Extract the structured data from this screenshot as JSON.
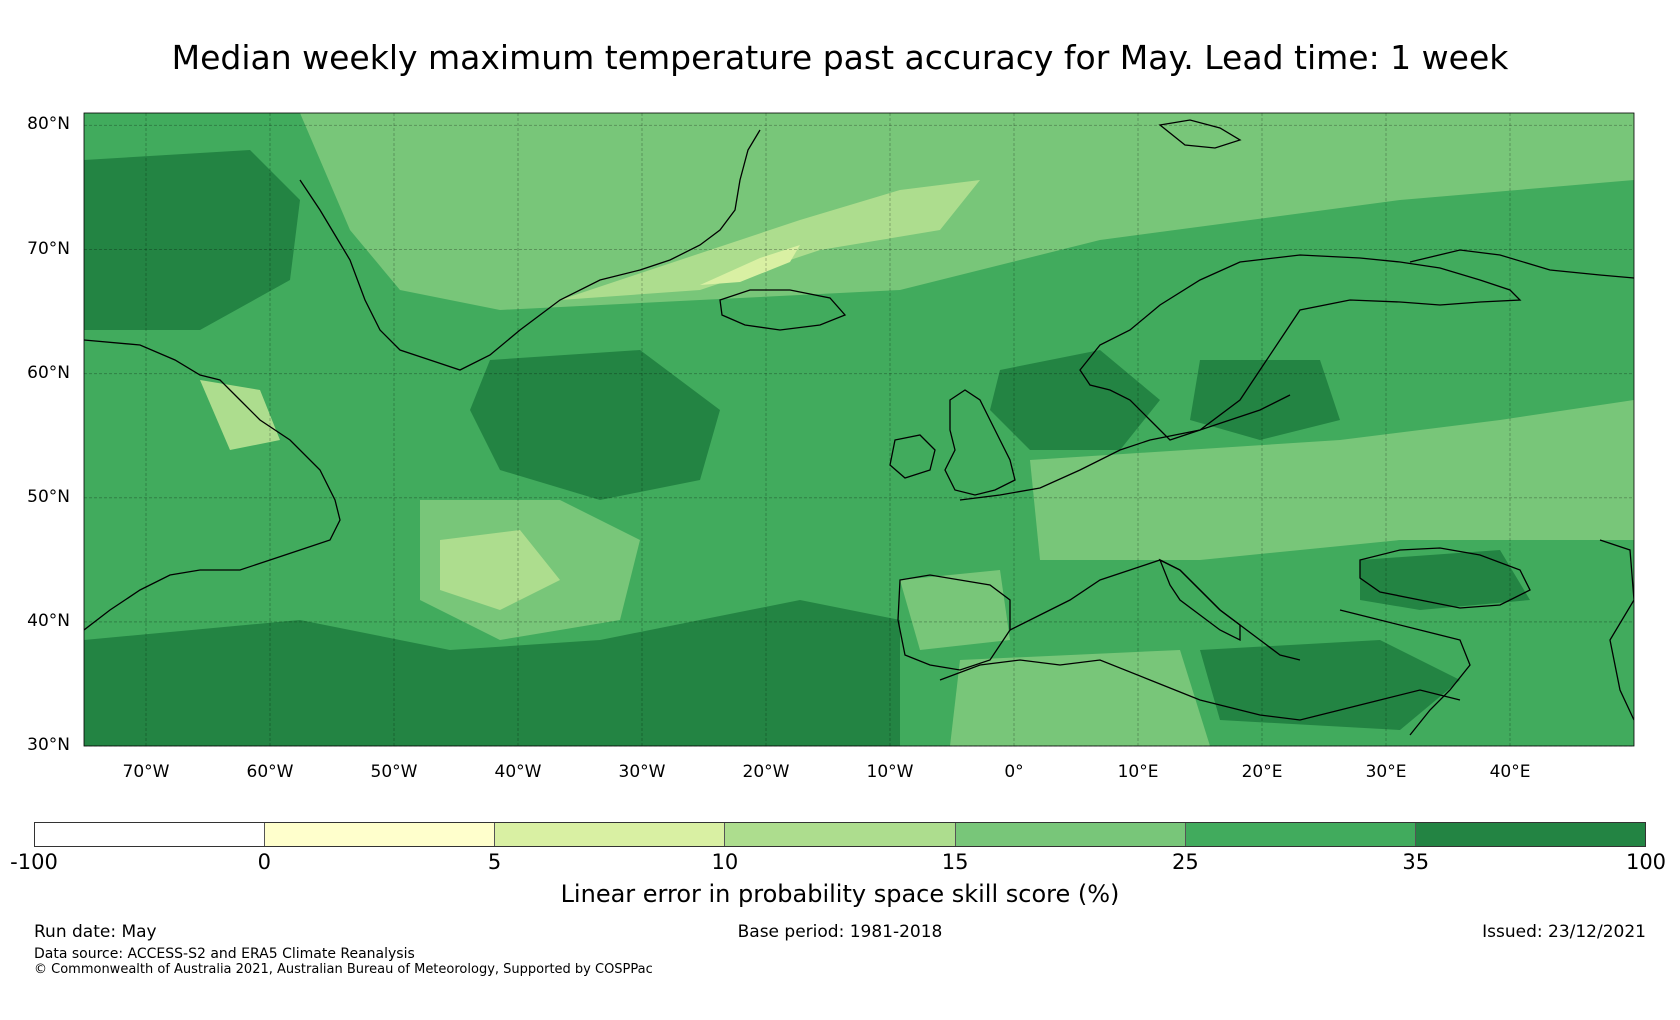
{
  "title": "Median weekly maximum temperature past accuracy for May. Lead time: 1 week",
  "map": {
    "extent": {
      "lon_min": -75,
      "lon_max": 50,
      "lat_min": 30,
      "lat_max": 81
    },
    "lat_ticks": [
      {
        "value": 80,
        "label": "80°N"
      },
      {
        "value": 70,
        "label": "70°N"
      },
      {
        "value": 60,
        "label": "60°N"
      },
      {
        "value": 50,
        "label": "50°N"
      },
      {
        "value": 40,
        "label": "40°N"
      },
      {
        "value": 30,
        "label": "30°N"
      }
    ],
    "lon_ticks": [
      {
        "value": -70,
        "label": "70°W"
      },
      {
        "value": -60,
        "label": "60°W"
      },
      {
        "value": -50,
        "label": "50°W"
      },
      {
        "value": -40,
        "label": "40°W"
      },
      {
        "value": -30,
        "label": "30°W"
      },
      {
        "value": -20,
        "label": "20°W"
      },
      {
        "value": -10,
        "label": "10°W"
      },
      {
        "value": 0,
        "label": "0°"
      },
      {
        "value": 10,
        "label": "10°E"
      },
      {
        "value": 20,
        "label": "20°E"
      },
      {
        "value": 30,
        "label": "30°E"
      },
      {
        "value": 40,
        "label": "40°E"
      }
    ],
    "gridlines": true,
    "coastlines": true
  },
  "colorbar": {
    "bins": [
      {
        "from": -100,
        "to": 0,
        "color": "#ffffff"
      },
      {
        "from": 0,
        "to": 5,
        "color": "#ffffcc"
      },
      {
        "from": 5,
        "to": 10,
        "color": "#d9f0a3"
      },
      {
        "from": 10,
        "to": 15,
        "color": "#addd8e"
      },
      {
        "from": 15,
        "to": 25,
        "color": "#78c679"
      },
      {
        "from": 25,
        "to": 35,
        "color": "#41ab5d"
      },
      {
        "from": 35,
        "to": 100,
        "color": "#238443"
      }
    ],
    "tick_labels": [
      "-100",
      "0",
      "5",
      "10",
      "15",
      "25",
      "35",
      "100"
    ],
    "label": "Linear error in probability space skill score (%)"
  },
  "footer": {
    "run_date": "Run date: May",
    "base_period": "Base period: 1981-2018",
    "issued": "Issued: 23/12/2021",
    "data_source": "Data source: ACCESS-S2 and ERA5 Climate Reanalysis",
    "copyright": "© Commonwealth of Australia 2021, Australian Bureau of Meteorology, Supported by COSPPac"
  }
}
